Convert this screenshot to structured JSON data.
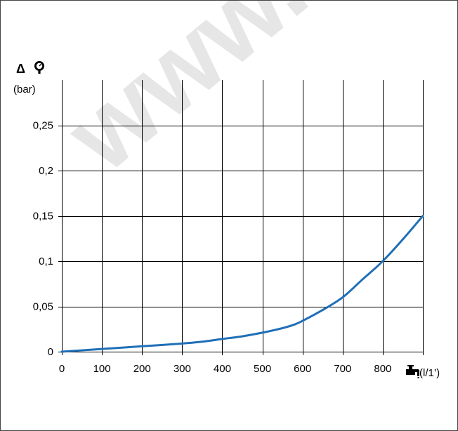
{
  "watermark": {
    "text": "www.",
    "color": "#e6e6e6"
  },
  "chart_data": {
    "type": "line",
    "title": "",
    "ylabel_symbol": "Δ",
    "ylabel_icon": "pressure-gauge-icon",
    "ylabel_unit": "(bar)",
    "xlabel_icon": "water-tap-icon",
    "xlabel_unit": "(l/1’)",
    "xlim": [
      0,
      900
    ],
    "ylim": [
      0,
      0.3
    ],
    "x_ticks": [
      0,
      100,
      200,
      300,
      400,
      500,
      600,
      700,
      800
    ],
    "x_tick_labels": [
      "0",
      "100",
      "200",
      "300",
      "400",
      "500",
      "600",
      "700",
      "800"
    ],
    "y_ticks": [
      0,
      0.05,
      0.1,
      0.15,
      0.2,
      0.25
    ],
    "y_tick_labels": [
      "0",
      "0,05",
      "0,1",
      "0,15",
      "0,2",
      "0,25"
    ],
    "grid": true,
    "series": [
      {
        "color": "#1f6fb8",
        "x": [
          0,
          100,
          200,
          300,
          350,
          400,
          450,
          500,
          550,
          580,
          600,
          650,
          700,
          750,
          800,
          850,
          900
        ],
        "y": [
          0,
          0.003,
          0.006,
          0.009,
          0.011,
          0.014,
          0.017,
          0.021,
          0.026,
          0.03,
          0.034,
          0.046,
          0.06,
          0.08,
          0.1,
          0.124,
          0.15
        ]
      }
    ]
  }
}
